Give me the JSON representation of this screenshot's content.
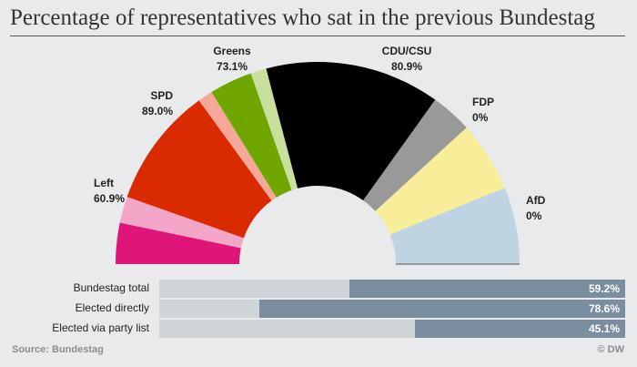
{
  "title": "Percentage of representatives who sat in the previous Bundestag",
  "source": "Source: Bundestag",
  "brand": "© DW",
  "chart_data": [
    {
      "type": "pie",
      "shape": "semicircle",
      "parties": [
        {
          "name": "Left",
          "value_label": "60.9%",
          "value": 60.9,
          "seat_share": 0.108,
          "color": "#e0157a",
          "color_new": "#f4a6c8"
        },
        {
          "name": "SPD",
          "value_label": "89.0%",
          "value": 89.0,
          "seat_share": 0.216,
          "color": "#d92a00",
          "color_new": "#f3a89a"
        },
        {
          "name": "Greens",
          "value_label": "73.1%",
          "value": 73.1,
          "seat_share": 0.094,
          "color": "#6fa600",
          "color_new": "#c9df9d"
        },
        {
          "name": "CDU/CSU",
          "value_label": "80.9%",
          "value": 80.9,
          "seat_share": 0.346,
          "color": "#000000",
          "color_new": "#999999"
        },
        {
          "name": "FDP",
          "value_label": "0%",
          "value": 0,
          "seat_share": 0.113,
          "color": "#f8ee99",
          "color_new": "#f8ee99"
        },
        {
          "name": "AfD",
          "value_label": "0%",
          "value": 0,
          "seat_share": 0.123,
          "color": "#bed4e3",
          "color_new": "#bed4e3"
        }
      ]
    },
    {
      "type": "bar",
      "orientation": "horizontal",
      "rows": [
        {
          "label": "Bundestag total",
          "value_label": "59.2%",
          "value": 59.2
        },
        {
          "label": "Elected directly",
          "value_label": "78.6%",
          "value": 78.6
        },
        {
          "label": "Elected via party list",
          "value_label": "45.1%",
          "value": 45.1
        }
      ],
      "xlim": [
        0,
        100
      ],
      "track_color": "#cfd4d9",
      "fill_color": "#7a8e9f"
    }
  ]
}
